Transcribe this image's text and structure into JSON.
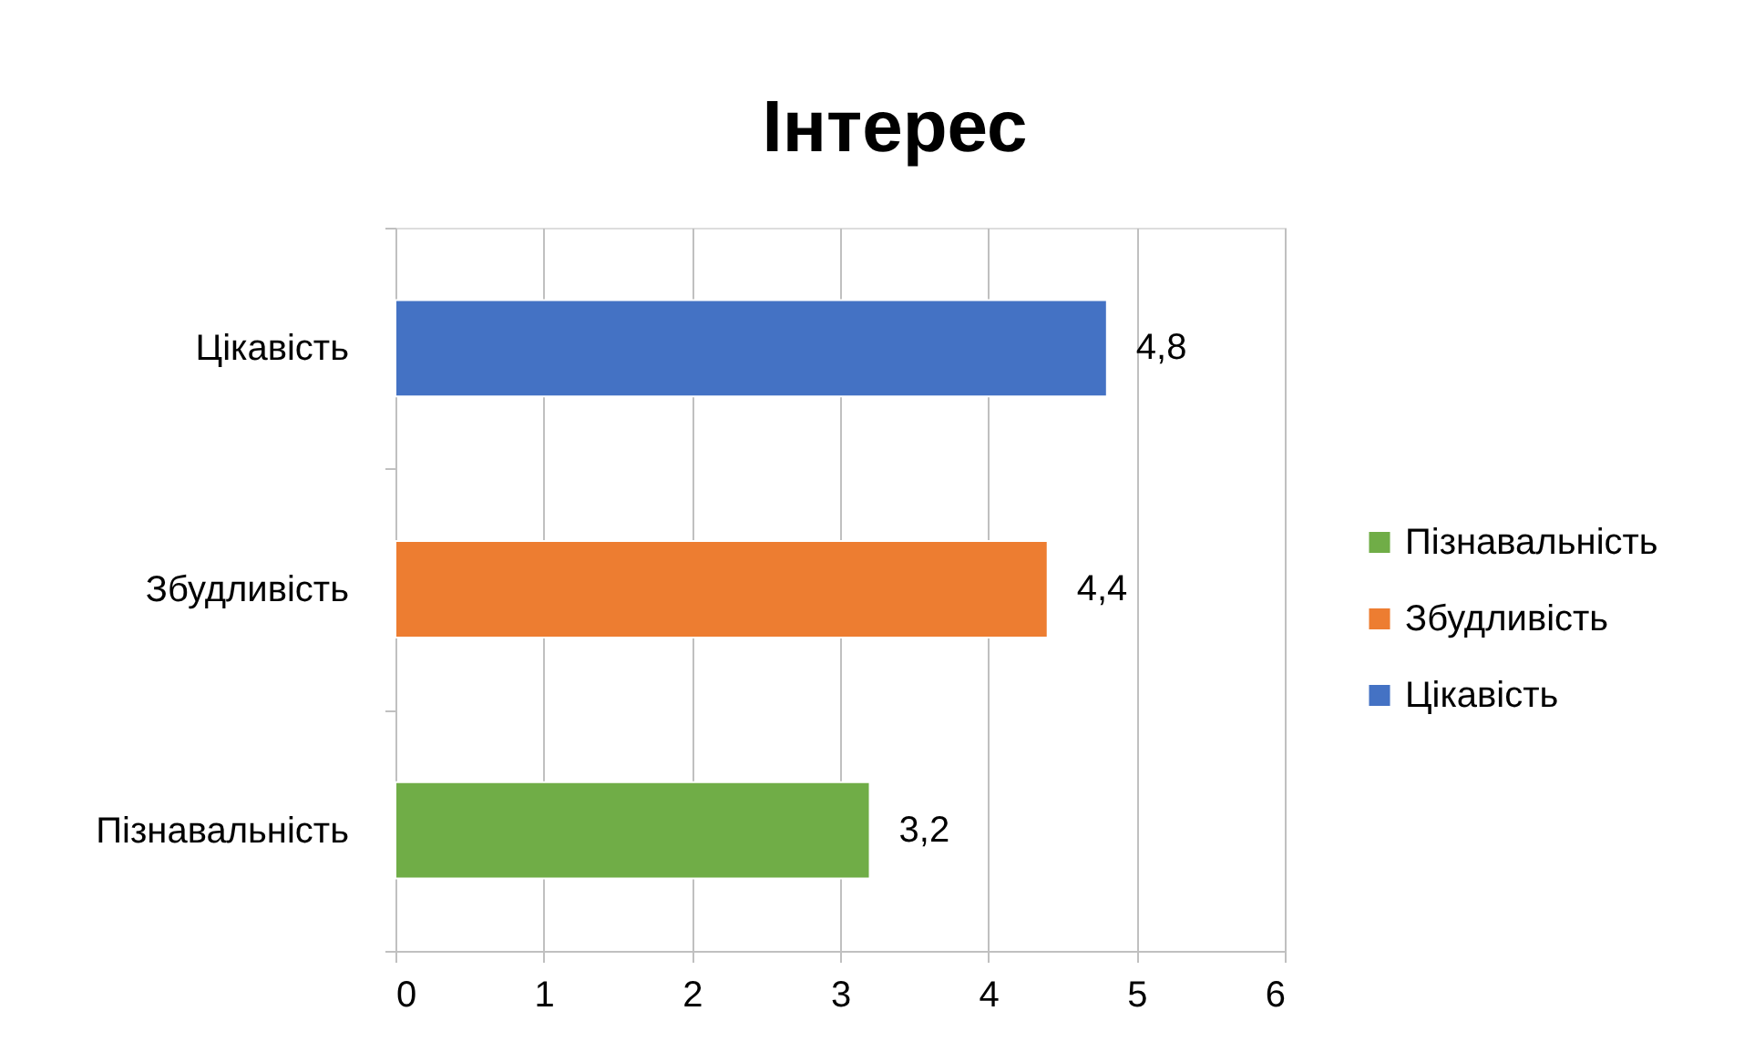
{
  "chart_data": {
    "type": "bar",
    "title": "Інтерес",
    "orientation": "horizontal",
    "categories": [
      "Цікавість",
      "Збудливість",
      "Пізнавальність"
    ],
    "series": [
      {
        "name": "Пізнавальність",
        "color": "#70ad47",
        "values": [
          null,
          null,
          3.2
        ],
        "value_labels": [
          null,
          null,
          "3,2"
        ]
      },
      {
        "name": "Збудливість",
        "color": "#ed7d31",
        "values": [
          null,
          4.4,
          null
        ],
        "value_labels": [
          null,
          "4,4",
          null
        ]
      },
      {
        "name": "Цікавість",
        "color": "#4472c4",
        "values": [
          4.8,
          null,
          null
        ],
        "value_labels": [
          "4,8",
          null,
          null
        ]
      }
    ],
    "xlim": [
      0,
      6
    ],
    "xticks": [
      0,
      1,
      2,
      3,
      4,
      5,
      6
    ],
    "grid": "x",
    "legend": "right"
  }
}
